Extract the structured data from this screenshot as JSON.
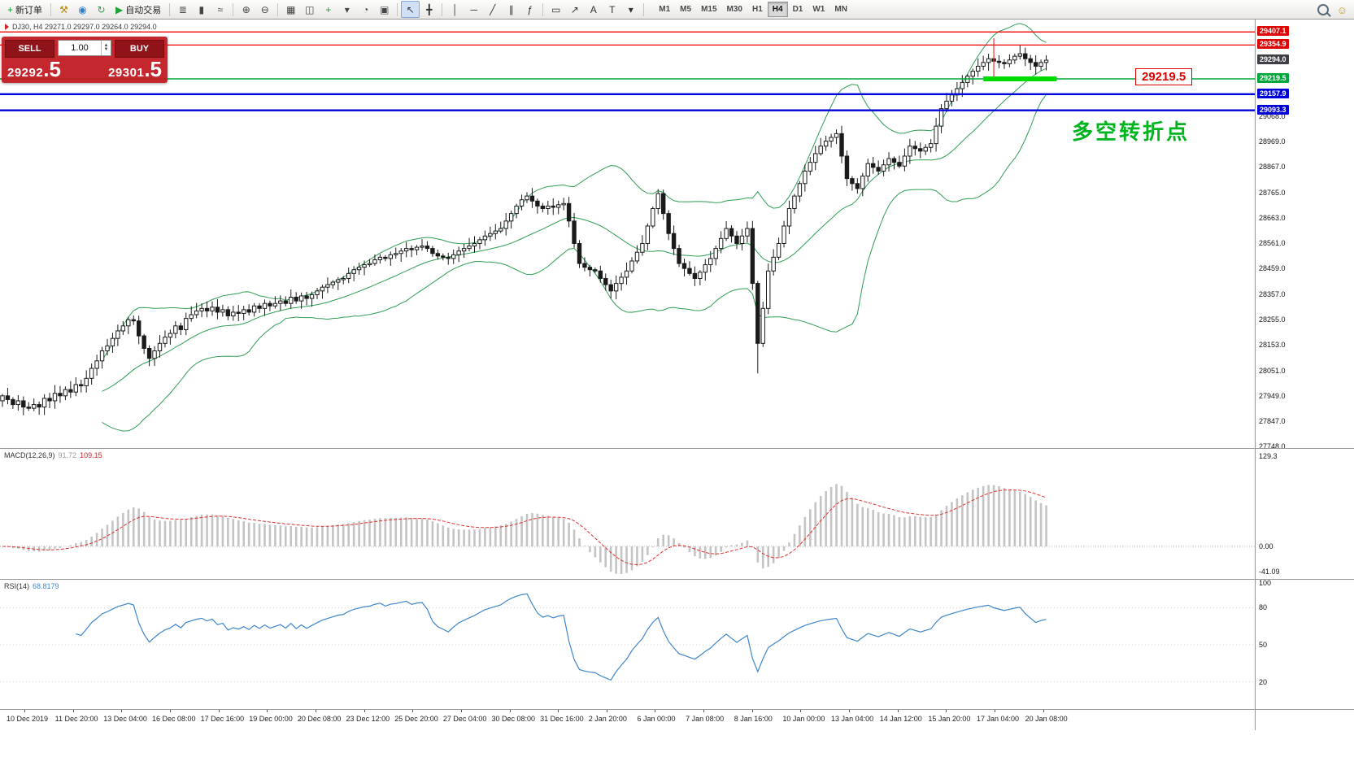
{
  "toolbar": {
    "items": [
      {
        "name": "new-order-button",
        "kind": "textbtn",
        "glyph": "+",
        "color": "#18a12e",
        "label": "新订单"
      },
      {
        "kind": "sep"
      },
      {
        "name": "hammer-tool-button",
        "kind": "icon",
        "glyph": "⚒",
        "color": "#b8860b"
      },
      {
        "name": "community-button",
        "kind": "icon",
        "glyph": "◉",
        "color": "#2d7fd3"
      },
      {
        "name": "refresh-button",
        "kind": "icon",
        "glyph": "↻",
        "color": "#2da04a"
      },
      {
        "name": "auto-trading-button",
        "kind": "textbtn",
        "glyph": "▶",
        "color": "#21a038",
        "label": "自动交易"
      },
      {
        "kind": "sep"
      },
      {
        "name": "bar-chart-type-button",
        "kind": "icon",
        "glyph": "≣",
        "color": "#444444"
      },
      {
        "name": "candlestick-type-button",
        "kind": "icon",
        "glyph": "▮",
        "color": "#444444"
      },
      {
        "name": "line-chart-type-button",
        "kind": "icon",
        "glyph": "≈",
        "color": "#444444"
      },
      {
        "kind": "sep"
      },
      {
        "name": "zoom-in-button",
        "kind": "icon",
        "glyph": "⊕",
        "color": "#444444"
      },
      {
        "name": "zoom-out-button",
        "kind": "icon",
        "glyph": "⊖",
        "color": "#444444"
      },
      {
        "kind": "sep"
      },
      {
        "name": "tile-windows-button",
        "kind": "icon",
        "glyph": "▦",
        "color": "#444444"
      },
      {
        "name": "new-chart-button",
        "kind": "icon",
        "glyph": "◫",
        "color": "#444444"
      },
      {
        "name": "indicators-button",
        "kind": "icon",
        "glyph": "+",
        "color": "#18a12e"
      },
      {
        "name": "indicators-caret-button",
        "kind": "icon",
        "glyph": "▾",
        "color": "#444444"
      },
      {
        "name": "periods-button",
        "kind": "icon",
        "glyph": "◔",
        "color": "#444444"
      },
      {
        "name": "templates-button",
        "kind": "icon",
        "glyph": "▣",
        "color": "#444444"
      },
      {
        "kind": "sep"
      },
      {
        "name": "cursor-tool-button",
        "kind": "icon",
        "glyph": "↖",
        "color": "#333333",
        "active": true
      },
      {
        "name": "crosshair-tool-button",
        "kind": "icon",
        "glyph": "╋",
        "color": "#333333"
      },
      {
        "kind": "sep"
      },
      {
        "name": "vertical-line-tool-button",
        "kind": "icon",
        "glyph": "│",
        "color": "#333333"
      },
      {
        "name": "horizontal-line-tool-button",
        "kind": "icon",
        "glyph": "─",
        "color": "#333333"
      },
      {
        "name": "trendline-tool-button",
        "kind": "icon",
        "glyph": "╱",
        "color": "#333333"
      },
      {
        "name": "channel-tool-button",
        "kind": "icon",
        "glyph": "∥",
        "color": "#333333"
      },
      {
        "name": "fibonacci-tool-button",
        "kind": "icon",
        "glyph": "ƒ",
        "color": "#333333"
      },
      {
        "kind": "sep"
      },
      {
        "name": "shapes-tool-button",
        "kind": "icon",
        "glyph": "▭",
        "color": "#333333"
      },
      {
        "name": "arrows-tool-button",
        "kind": "icon",
        "glyph": "↗",
        "color": "#333333"
      },
      {
        "name": "text-tool-button",
        "kind": "icon",
        "glyph": "A",
        "color": "#333333"
      },
      {
        "name": "label-tool-button",
        "kind": "icon",
        "glyph": "T",
        "color": "#333333"
      },
      {
        "name": "objects-caret-button",
        "kind": "icon",
        "glyph": "▾",
        "color": "#333333"
      },
      {
        "kind": "sep"
      }
    ],
    "timeframes": [
      "M1",
      "M5",
      "M15",
      "M30",
      "H1",
      "H4",
      "D1",
      "W1",
      "MN"
    ],
    "active_timeframe": "H4"
  },
  "symbol_header": {
    "text": "DJ30, H4  29271.0 29297.0 29264.0 29294.0"
  },
  "trade_panel": {
    "sell_label": "SELL",
    "buy_label": "BUY",
    "volume": "1.00",
    "sell_price": "29292",
    "sell_price_frac": ".5",
    "buy_price": "29301",
    "buy_price_frac": ".5"
  },
  "annotations": {
    "turning_point": "多空转折点",
    "price_label": "29219.5"
  },
  "price_axis": {
    "special": [
      {
        "text": "29407.1",
        "value": 29407.1,
        "color": "#dd0404"
      },
      {
        "text": "29354.9",
        "value": 29354.9,
        "color": "#dd0404"
      },
      {
        "text": "29294.0",
        "value": 29294.0,
        "color": "#3f3f46"
      },
      {
        "text": "29219.5",
        "value": 29219.5,
        "color": "#00a83a"
      },
      {
        "text": "29157.9",
        "value": 29157.9,
        "color": "#0000d8"
      },
      {
        "text": "29093.3",
        "value": 29093.3,
        "color": "#0000d8"
      }
    ],
    "regular": [
      "29068.0",
      "28969.0",
      "28867.0",
      "28765.0",
      "28663.0",
      "28561.0",
      "28459.0",
      "28357.0",
      "28255.0",
      "28153.0",
      "28051.0",
      "27949.0",
      "27847.0",
      "27748.0"
    ]
  },
  "macd_panel": {
    "name": "MACD(12,26,9)",
    "main_value": "91.72",
    "signal_value": "109.15",
    "axis": [
      "129.3",
      "0.00",
      "-41.09"
    ]
  },
  "rsi_panel": {
    "name": "RSI(14)",
    "value": "68.8179",
    "axis": [
      "100",
      "80",
      "50",
      "20"
    ]
  },
  "time_axis": [
    "10 Dec 2019",
    "11 Dec 20:00",
    "13 Dec 04:00",
    "16 Dec 08:00",
    "17 Dec 16:00",
    "19 Dec 00:00",
    "20 Dec 08:00",
    "23 Dec 12:00",
    "25 Dec 20:00",
    "27 Dec 04:00",
    "30 Dec 08:00",
    "31 Dec 16:00",
    "2 Jan 20:00",
    "6 Jan 00:00",
    "7 Jan 08:00",
    "8 Jan 16:00",
    "10 Jan 00:00",
    "13 Jan 04:00",
    "14 Jan 12:00",
    "15 Jan 20:00",
    "17 Jan 04:00",
    "20 Jan 08:00"
  ],
  "chart_data": {
    "type": "candlestick",
    "symbol": "DJ30",
    "timeframe": "H4",
    "ohlc_current": {
      "open": 29271.0,
      "high": 29297.0,
      "low": 29264.0,
      "close": 29294.0
    },
    "bid": 29292.5,
    "ask": 29301.5,
    "view": {
      "price_top": 29457,
      "price_bottom": 27741,
      "candle_step": 6.45
    },
    "closes": [
      27950,
      27935,
      27915,
      27930,
      27905,
      27900,
      27915,
      27905,
      27940,
      27930,
      27960,
      27950,
      27975,
      27965,
      27995,
      27990,
      28020,
      28060,
      28090,
      28130,
      28150,
      28180,
      28210,
      28230,
      28255,
      28250,
      28190,
      28140,
      28100,
      28130,
      28160,
      28185,
      28200,
      28230,
      28215,
      28260,
      28275,
      28290,
      28300,
      28290,
      28305,
      28285,
      28295,
      28270,
      28285,
      28280,
      28295,
      28285,
      28310,
      28300,
      28320,
      28310,
      28320,
      28330,
      28320,
      28345,
      28330,
      28350,
      28340,
      28355,
      28370,
      28385,
      28395,
      28405,
      28415,
      28420,
      28440,
      28455,
      28465,
      28475,
      28480,
      28495,
      28505,
      28500,
      28515,
      28520,
      28530,
      28540,
      28535,
      28545,
      28550,
      28540,
      28520,
      28510,
      28505,
      28500,
      28515,
      28530,
      28540,
      28550,
      28560,
      28575,
      28590,
      28600,
      28610,
      28620,
      28650,
      28680,
      28710,
      28735,
      28750,
      28730,
      28710,
      28700,
      28710,
      28705,
      28715,
      28720,
      28650,
      28560,
      28480,
      28465,
      28455,
      28450,
      28420,
      28395,
      28370,
      28400,
      28425,
      28450,
      28490,
      28525,
      28560,
      28630,
      28700,
      28760,
      28680,
      28600,
      28540,
      28480,
      28460,
      28440,
      28420,
      28445,
      28475,
      28500,
      28540,
      28580,
      28620,
      28590,
      28560,
      28590,
      28620,
      28400,
      28160,
      28300,
      28450,
      28505,
      28560,
      28630,
      28700,
      28750,
      28800,
      28850,
      28885,
      28920,
      28950,
      28970,
      28985,
      29000,
      28910,
      28820,
      28800,
      28780,
      28830,
      28880,
      28865,
      28850,
      28875,
      28900,
      28885,
      28870,
      28910,
      28950,
      28940,
      28930,
      28945,
      28960,
      29030,
      29100,
      29130,
      29155,
      29180,
      29205,
      29230,
      29250,
      29270,
      29285,
      29300,
      29290,
      29285,
      29280,
      29295,
      29310,
      29320,
      29300,
      29285,
      29270,
      29285,
      29294
    ],
    "high_overrides": {
      "125": 28778,
      "179": 29118
    },
    "low_overrides": {
      "144": 28040
    },
    "bollinger": {
      "period": 20,
      "deviation": 2
    },
    "indicators": {
      "macd": {
        "fast": 12,
        "slow": 26,
        "signal": 9,
        "values_shown": [
          91.72,
          109.15
        ]
      },
      "rsi": {
        "period": 14,
        "value_shown": 68.8179
      }
    },
    "levels": [
      {
        "value": 29407.1,
        "color": "#f00000",
        "width": 1.3,
        "name": "resistance-line-29407"
      },
      {
        "value": 29354.9,
        "color": "#f00000",
        "width": 1.3,
        "name": "resistance-line-29354"
      },
      {
        "value": 29219.5,
        "color": "#00a83a",
        "width": 1.5,
        "name": "support-line-29219"
      },
      {
        "value": 29157.9,
        "color": "#0000d8",
        "width": 2.4,
        "name": "support-line-29157"
      },
      {
        "value": 29093.3,
        "color": "#0000d8",
        "width": 2.4,
        "name": "support-line-29093"
      }
    ],
    "support_zone": {
      "value": 29219.5,
      "from_candle": 187,
      "to_candle": 201,
      "color": "#00dc00",
      "width": 6
    },
    "vertical_mark": {
      "at_candle": 189,
      "from": 29382,
      "to": 29228,
      "color": "#f03030"
    },
    "colors": {
      "bollinger": "#2f9e53",
      "candle_up": "#ffffff",
      "candle_down": "#1a1a1a",
      "macd_hist": "#c4c4c4",
      "macd_signal": "#e03030",
      "rsi": "#3e86cc"
    }
  }
}
